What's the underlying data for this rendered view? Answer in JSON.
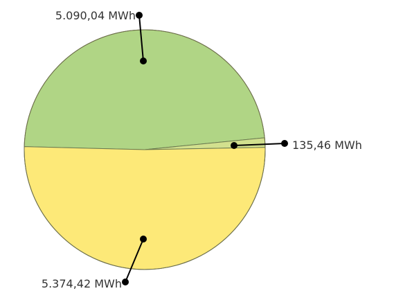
{
  "chart_data": {
    "type": "pie",
    "title": "",
    "unit": "MWh",
    "slices": [
      {
        "value": 5090.04,
        "label": "5.090,04 MWh",
        "color": "#b0d585"
      },
      {
        "value": 135.46,
        "label": "135,46 MWh",
        "color": "#d2e08e"
      },
      {
        "value": 5374.42,
        "label": "5.374,42 MWh",
        "color": "#fde978"
      }
    ],
    "legend": "none",
    "label_style": "leader-lines"
  }
}
